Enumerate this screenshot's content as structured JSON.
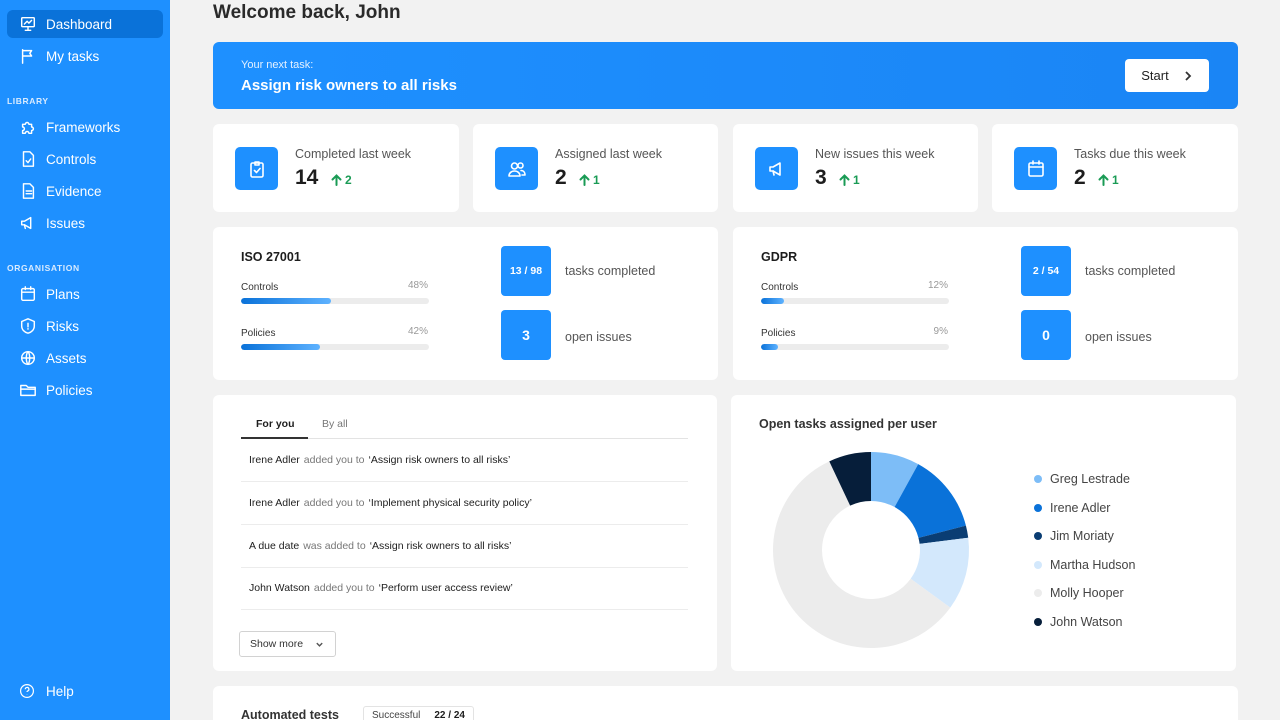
{
  "sidebar": {
    "items_top": [
      {
        "label": "Dashboard",
        "icon": "presentation-chart-icon"
      },
      {
        "label": "My tasks",
        "icon": "flag-icon"
      }
    ],
    "library_label": "LIBRARY",
    "library_items": [
      {
        "label": "Frameworks",
        "icon": "puzzle-icon"
      },
      {
        "label": "Controls",
        "icon": "document-check-icon"
      },
      {
        "label": "Evidence",
        "icon": "document-icon"
      },
      {
        "label": "Issues",
        "icon": "megaphone-icon"
      }
    ],
    "organisation_label": "ORGANISATION",
    "organisation_items": [
      {
        "label": "Plans",
        "icon": "calendar-icon"
      },
      {
        "label": "Risks",
        "icon": "shield-icon"
      },
      {
        "label": "Assets",
        "icon": "globe-icon"
      },
      {
        "label": "Policies",
        "icon": "folder-icon"
      }
    ],
    "help_label": "Help"
  },
  "welcome": "Welcome back, John",
  "banner": {
    "small": "Your next task:",
    "big": "Assign risk owners to all risks",
    "start_label": "Start"
  },
  "stats": [
    {
      "label": "Completed last week",
      "value": "14",
      "delta": "2",
      "icon": "clipboard-check-icon"
    },
    {
      "label": "Assigned last week",
      "value": "2",
      "delta": "1",
      "icon": "users-icon"
    },
    {
      "label": "New issues this week",
      "value": "3",
      "delta": "1",
      "icon": "megaphone-icon"
    },
    {
      "label": "Tasks due this week",
      "value": "2",
      "delta": "1",
      "icon": "calendar-icon"
    }
  ],
  "frameworks": [
    {
      "title": "ISO 27001",
      "controls_label": "Controls",
      "controls_pct": "48%",
      "controls_value": 48,
      "policies_label": "Policies",
      "policies_pct": "42%",
      "policies_value": 42,
      "tasks_box": "13 / 98",
      "tasks_label": "tasks completed",
      "issues_box": "3",
      "issues_label": "open issues"
    },
    {
      "title": "GDPR",
      "controls_label": "Controls",
      "controls_pct": "12%",
      "controls_value": 12,
      "policies_label": "Policies",
      "policies_pct": "9%",
      "policies_value": 9,
      "tasks_box": "2 / 54",
      "tasks_label": "tasks completed",
      "issues_box": "0",
      "issues_label": "open issues"
    }
  ],
  "activity": {
    "tabs": [
      "For you",
      "By all"
    ],
    "items": [
      {
        "who": "Irene Adler",
        "verb": "added you to",
        "what": "‘Assign risk owners to all risks’"
      },
      {
        "who": "Irene Adler",
        "verb": "added you to",
        "what": "‘Implement physical security policy’"
      },
      {
        "who": "A due date",
        "verb": "was added to",
        "what": "‘Assign risk owners to all risks’"
      },
      {
        "who": "John Watson",
        "verb": "added you to",
        "what": "‘Perform user access review’"
      }
    ],
    "show_more": "Show more"
  },
  "chart_data": {
    "type": "pie",
    "title": "Open tasks assigned per user",
    "categories": [
      "Greg Lestrade",
      "Irene Adler",
      "Jim Moriaty",
      "Martha Hudson",
      "Molly Hooper",
      "John Watson"
    ],
    "values": [
      8,
      13,
      2,
      12,
      58,
      7
    ],
    "colors": [
      "#7dbdf7",
      "#0a72d9",
      "#0a3d73",
      "#d3e8fc",
      "#ececec",
      "#061e3a"
    ],
    "legend_position": "right"
  },
  "automated": {
    "title": "Automated tests",
    "pill_label": "Successful",
    "pill_count": "22 / 24"
  }
}
